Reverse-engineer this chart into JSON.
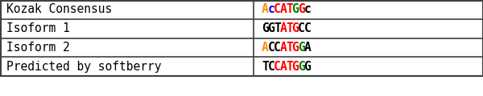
{
  "rows": [
    {
      "label": "Kozak Consensus",
      "sequence": [
        "A",
        "c",
        "C",
        "A",
        "T",
        "G",
        "G",
        "c"
      ],
      "colors": [
        "#FF8C00",
        "#0000FF",
        "#FF0000",
        "#FF0000",
        "#FF0000",
        "#008000",
        "#FF0000",
        "#000000"
      ]
    },
    {
      "label": "Isoform 1",
      "sequence": [
        "G",
        "G",
        "T",
        "A",
        "T",
        "G",
        "C",
        "C"
      ],
      "colors": [
        "#000000",
        "#000000",
        "#000000",
        "#FF0000",
        "#FF0000",
        "#FF0000",
        "#000000",
        "#000000"
      ]
    },
    {
      "label": "Isoform 2",
      "sequence": [
        "A",
        "C",
        "C",
        "A",
        "T",
        "G",
        "G",
        "A"
      ],
      "colors": [
        "#FF8C00",
        "#000000",
        "#000000",
        "#FF0000",
        "#FF0000",
        "#FF0000",
        "#008000",
        "#000000"
      ]
    },
    {
      "label": "Predicted by softberry",
      "sequence": [
        "T",
        "C",
        "C",
        "A",
        "T",
        "G",
        "G",
        "G"
      ],
      "colors": [
        "#000000",
        "#000000",
        "#FF0000",
        "#FF0000",
        "#FF0000",
        "#FF0000",
        "#008000",
        "#000000"
      ]
    }
  ],
  "col_divider": 0.525,
  "bg_color": "#FFFFFF",
  "border_color": "#404040",
  "font_size": 10.5,
  "label_font_size": 10.5
}
